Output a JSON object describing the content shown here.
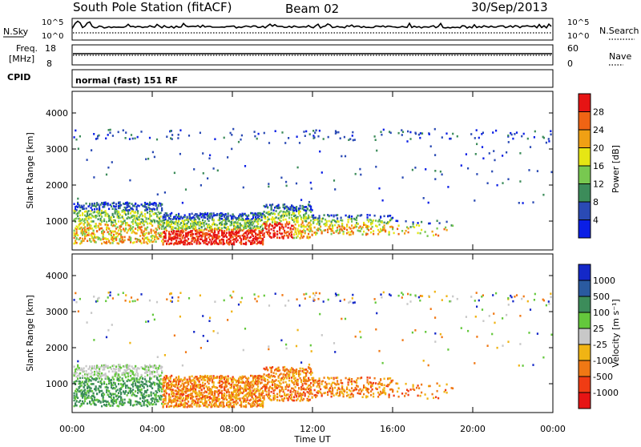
{
  "header": {
    "station": "South Pole Station (fitACF)",
    "beam": "Beam 02",
    "date": "30/Sep/2013"
  },
  "strip": {
    "nsky_label": "N.Sky",
    "nsearch_label": "N.Search",
    "nsky_ticks": [
      "10^5",
      "10^0"
    ],
    "nsearch_ticks": [
      "10^5",
      "10^0"
    ],
    "freq_label_1": "Freq.",
    "freq_label_2": "[MHz]",
    "freq_ticks": [
      "18",
      "8"
    ],
    "nave_label": "Nave",
    "nave_ticks": [
      "60",
      "0"
    ],
    "cpid_label": "CPID",
    "cpid_text": "normal (fast) 151 RF"
  },
  "colorbars": {
    "power": {
      "label": "Power [dB]",
      "ticks": [
        "4",
        "8",
        "12",
        "16",
        "20",
        "24",
        "28"
      ],
      "colors": [
        "#0a1ee6",
        "#2a4ab4",
        "#3c8c5a",
        "#78c850",
        "#e6e614",
        "#f0a014",
        "#f06414",
        "#e61414"
      ]
    },
    "velocity": {
      "label": "Velocity [m s⁻¹]",
      "ticks": [
        "1000",
        "500",
        "100",
        "25",
        "-25",
        "-100",
        "-500",
        "-1000"
      ],
      "colors": [
        "#1428c8",
        "#2a5aa0",
        "#3c8c5a",
        "#64c83c",
        "#c8c8c8",
        "#f0b414",
        "#f07814",
        "#f03c14",
        "#e61414"
      ]
    }
  },
  "chart_data": [
    {
      "type": "heatmap",
      "panel": "power",
      "ylabel": "Slant Range [km]",
      "yticks": [
        "1000",
        "2000",
        "3000",
        "4000"
      ],
      "ylim": [
        200,
        4600
      ],
      "xlim": [
        "00:00",
        "24:00"
      ]
    },
    {
      "type": "heatmap",
      "panel": "velocity",
      "ylabel": "Slant Range [km]",
      "yticks": [
        "1000",
        "2000",
        "3000",
        "4000"
      ],
      "ylim": [
        200,
        4600
      ],
      "xlim": [
        "00:00",
        "24:00"
      ],
      "xlabel": "Time UT",
      "xticks": [
        "00:00",
        "04:00",
        "08:00",
        "12:00",
        "16:00",
        "20:00",
        "00:00"
      ]
    }
  ]
}
